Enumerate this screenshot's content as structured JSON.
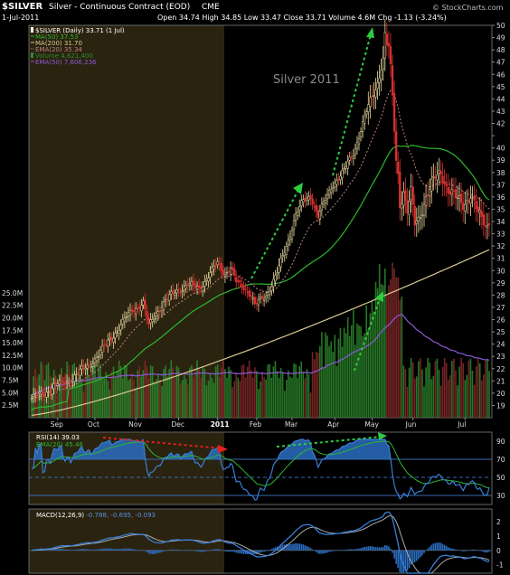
{
  "header": {
    "symbol": "$SILVER",
    "description": "Silver - Continuous Contract (EOD)",
    "exchange": "CME",
    "date": "1-Jul-2011",
    "ohlc": "Open 34.74  High 34.85  Low 33.47  Close 33.71  Volume 4.6M  Chg -1.13 (-3.24%)",
    "copyright": "© StockCharts.com"
  },
  "annotation": "Silver 2011",
  "legend": [
    {
      "text": "$SILVER (Daily) 33.71 (1 Jul)",
      "color": "#ffffff"
    },
    {
      "text": "MA(50) 37.53",
      "color": "#2db82d"
    },
    {
      "text": "MA(200) 31.70",
      "color": "#d9c98f"
    },
    {
      "text": "EMA(20) 35.34",
      "color": "#c08080"
    },
    {
      "text": "Volume 4,621,400",
      "color": "#2e8b2e"
    },
    {
      "text": "EMA(50) 7,606,236",
      "color": "#8a5ad6"
    }
  ],
  "rsi_legend": [
    {
      "text": "RSI(14) 39.03",
      "color": "#ffffff"
    },
    {
      "text": "EMA(20) 45.46",
      "color": "#2db82d"
    }
  ],
  "macd_legend": [
    {
      "text": "MACD(12,26,9) ",
      "color": "#ffffff"
    },
    {
      "text": "-0.788, -0.695, -0.093",
      "color": "#5b8fe0"
    }
  ],
  "colors": {
    "background": "#000000",
    "highlight": "#2a2310",
    "up_candle": "#e8d9a0",
    "down_candle": "#d83030",
    "ma50": "#2db82d",
    "ma200": "#d9c98f",
    "ema20": "#c08080",
    "volume": "#2e8b2e",
    "vol_ema": "#8a5ad6",
    "rsi": "#3a7fd8",
    "arrow_green": "#2ecc40",
    "arrow_red": "#e02020"
  },
  "chart_data": {
    "type": "line",
    "title": "Silver 2011",
    "x_tick_labels": [
      "Sep",
      "Oct",
      "Nov",
      "Dec",
      "2011",
      "Feb",
      "Mar",
      "Apr",
      "May",
      "Jun",
      "Jul"
    ],
    "price_axis": {
      "ylim": [
        18,
        50
      ],
      "ticks": [
        19,
        20,
        21,
        22,
        23,
        24,
        25,
        26,
        27,
        28,
        29,
        30,
        31,
        32,
        33,
        34,
        35,
        36,
        37,
        38,
        39,
        40,
        41,
        42,
        43,
        44,
        45,
        46,
        47,
        48,
        49,
        50
      ],
      "labeled": [
        19,
        20,
        21,
        22,
        23,
        24,
        25,
        26,
        27,
        28,
        29,
        30,
        31,
        32,
        33,
        34,
        35,
        36,
        37,
        38,
        39,
        40,
        42,
        43,
        44,
        45,
        46,
        47,
        48,
        49,
        50
      ]
    },
    "volume_axis": {
      "ylim": [
        0,
        27500000
      ],
      "ticks_labels": [
        "2.5M",
        "5.0M",
        "7.5M",
        "10.0M",
        "12.5M",
        "15.0M",
        "17.5M",
        "20.0M",
        "22.5M",
        "25.0M"
      ],
      "ticks_values": [
        2.5,
        5,
        7.5,
        10,
        12.5,
        15,
        17.5,
        20,
        22.5,
        25
      ]
    },
    "close_anchors": [
      [
        0,
        19.6
      ],
      [
        6,
        19.9
      ],
      [
        12,
        20.6
      ],
      [
        18,
        20.9
      ],
      [
        24,
        21.5
      ],
      [
        30,
        22.2
      ],
      [
        36,
        23.1
      ],
      [
        42,
        24.4
      ],
      [
        48,
        25.5
      ],
      [
        54,
        26.8
      ],
      [
        60,
        27.3
      ],
      [
        63,
        25.4
      ],
      [
        66,
        26.4
      ],
      [
        72,
        27.5
      ],
      [
        78,
        28.4
      ],
      [
        84,
        28.8
      ],
      [
        90,
        28.6
      ],
      [
        95,
        29.5
      ],
      [
        100,
        30.6
      ],
      [
        104,
        29.8
      ],
      [
        107,
        30.2
      ],
      [
        110,
        29.0
      ],
      [
        114,
        28.7
      ],
      [
        118,
        28.0
      ],
      [
        120,
        27.1
      ],
      [
        122,
        27.4
      ],
      [
        126,
        28.0
      ],
      [
        132,
        29.8
      ],
      [
        137,
        32.0
      ],
      [
        142,
        34.6
      ],
      [
        146,
        35.6
      ],
      [
        150,
        36.1
      ],
      [
        154,
        34.5
      ],
      [
        158,
        35.7
      ],
      [
        162,
        37.1
      ],
      [
        168,
        38.1
      ],
      [
        173,
        39.6
      ],
      [
        178,
        42.0
      ],
      [
        182,
        43.8
      ],
      [
        185,
        44.8
      ],
      [
        188,
        46.6
      ],
      [
        189,
        47.3
      ],
      [
        190,
        49.2
      ],
      [
        191,
        48.4
      ],
      [
        192,
        48.0
      ],
      [
        193,
        46.2
      ],
      [
        194,
        44.0
      ],
      [
        195,
        41.5
      ],
      [
        196,
        39.0
      ],
      [
        197,
        37.9
      ],
      [
        198,
        35.6
      ],
      [
        200,
        36.5
      ],
      [
        202,
        34.8
      ],
      [
        204,
        36.2
      ],
      [
        206,
        33.7
      ],
      [
        208,
        34.2
      ],
      [
        212,
        36.1
      ],
      [
        216,
        37.2
      ],
      [
        220,
        38.0
      ],
      [
        224,
        36.7
      ],
      [
        228,
        35.8
      ],
      [
        232,
        35.4
      ],
      [
        236,
        36.3
      ],
      [
        240,
        34.5
      ],
      [
        244,
        33.8
      ],
      [
        246,
        33.71
      ]
    ],
    "ma200_range": [
      18.2,
      31.7
    ],
    "rsi": {
      "ylim": [
        20,
        100
      ],
      "ticks": [
        30,
        50,
        70,
        90
      ],
      "last": 39.03,
      "ema": 45.46
    },
    "macd": {
      "ticks": [
        -1,
        0,
        1,
        2
      ],
      "macd": -0.788,
      "signal": -0.695,
      "histogram": -0.093
    }
  }
}
